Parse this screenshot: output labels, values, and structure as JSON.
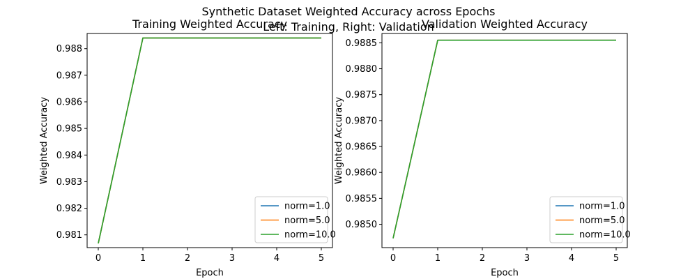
{
  "figure": {
    "title_line1": "Synthetic Dataset Weighted Accuracy across Epochs",
    "title_line2": "Left: Training, Right: Validation"
  },
  "chart_data": [
    {
      "type": "line",
      "title": "Training Weighted Accuracy",
      "xlabel": "Epoch",
      "ylabel": "Weighted Accuracy",
      "x": [
        0,
        1,
        2,
        3,
        4,
        5
      ],
      "xlim": [
        -0.25,
        5.25
      ],
      "ylim": [
        0.98052,
        0.98857
      ],
      "xticks": [
        0,
        1,
        2,
        3,
        4,
        5
      ],
      "yticks": [
        0.981,
        0.982,
        0.983,
        0.984,
        0.985,
        0.986,
        0.987,
        0.988
      ],
      "ytick_labels": [
        "0.981",
        "0.982",
        "0.983",
        "0.984",
        "0.985",
        "0.986",
        "0.987",
        "0.988"
      ],
      "grid": false,
      "legend": "lower-right",
      "series": [
        {
          "name": "norm=1.0",
          "color": "#1f77b4",
          "values": [
            0.98068,
            0.9884,
            0.9884,
            0.9884,
            0.9884,
            0.9884
          ]
        },
        {
          "name": "norm=5.0",
          "color": "#ff7f0e",
          "values": [
            0.98068,
            0.9884,
            0.9884,
            0.9884,
            0.9884,
            0.9884
          ]
        },
        {
          "name": "norm=10.0",
          "color": "#2ca02c",
          "values": [
            0.98068,
            0.9884,
            0.9884,
            0.9884,
            0.9884,
            0.9884
          ]
        }
      ]
    },
    {
      "type": "line",
      "title": "Validation Weighted Accuracy",
      "xlabel": "Epoch",
      "ylabel": "Weighted Accuracy",
      "x": [
        0,
        1,
        2,
        3,
        4,
        5
      ],
      "xlim": [
        -0.25,
        5.25
      ],
      "ylim": [
        0.98455,
        0.98868
      ],
      "xticks": [
        0,
        1,
        2,
        3,
        4,
        5
      ],
      "yticks": [
        0.985,
        0.9855,
        0.986,
        0.9865,
        0.987,
        0.9875,
        0.988,
        0.9885
      ],
      "ytick_labels": [
        "0.9850",
        "0.9855",
        "0.9860",
        "0.9865",
        "0.9870",
        "0.9875",
        "0.9880",
        "0.9885"
      ],
      "grid": false,
      "legend": "lower-right",
      "series": [
        {
          "name": "norm=1.0",
          "color": "#1f77b4",
          "values": [
            0.98473,
            0.98855,
            0.98855,
            0.98855,
            0.98855,
            0.98855
          ]
        },
        {
          "name": "norm=5.0",
          "color": "#ff7f0e",
          "values": [
            0.98473,
            0.98855,
            0.98855,
            0.98855,
            0.98855,
            0.98855
          ]
        },
        {
          "name": "norm=10.0",
          "color": "#2ca02c",
          "values": [
            0.98473,
            0.98855,
            0.98855,
            0.98855,
            0.98855,
            0.98855
          ]
        }
      ]
    }
  ]
}
